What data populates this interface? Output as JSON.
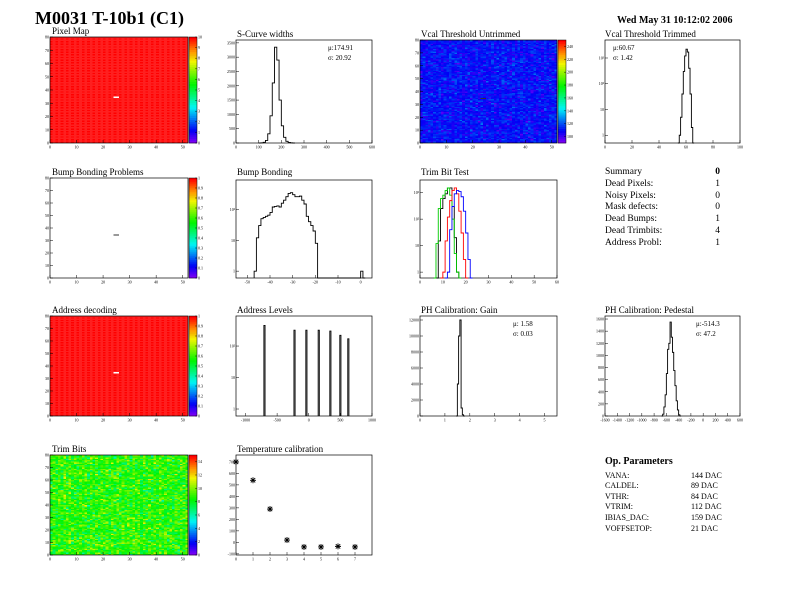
{
  "header": {
    "title": "M0031 T-10b1 (C1)",
    "date": "Wed May 31 10:12:02 2006"
  },
  "summary": {
    "label": "Summary",
    "value": "0",
    "rows": [
      {
        "label": "Dead Pixels:",
        "value": "1"
      },
      {
        "label": "Noisy Pixels:",
        "value": "0"
      },
      {
        "label": "Mask defects:",
        "value": "0"
      },
      {
        "label": "Dead Bumps:",
        "value": "1"
      },
      {
        "label": "Dead Trimbits:",
        "value": "4"
      },
      {
        "label": "Address Probl:",
        "value": "1"
      }
    ]
  },
  "op_parameters": {
    "title": "Op. Parameters",
    "rows": [
      {
        "label": "VANA:",
        "value": "144 DAC"
      },
      {
        "label": "CALDEL:",
        "value": "89 DAC"
      },
      {
        "label": "VTHR:",
        "value": "84 DAC"
      },
      {
        "label": "VTRIM:",
        "value": "112 DAC"
      },
      {
        "label": "IBIAS_DAC:",
        "value": "159 DAC"
      },
      {
        "label": "VOFFSETOP:",
        "value": "21 DAC"
      }
    ]
  },
  "chart_data": [
    {
      "id": "pixel_map",
      "type": "heatmap",
      "title": "Pixel Map",
      "xlim": [
        0,
        52
      ],
      "ylim": [
        0,
        80
      ],
      "xticks": [
        0,
        10,
        20,
        30,
        40,
        50
      ],
      "yticks": [
        0,
        10,
        20,
        30,
        40,
        50,
        60,
        70,
        80
      ],
      "zlim": [
        0,
        10
      ],
      "zticks": [
        0,
        1,
        2,
        3,
        4,
        5,
        6,
        7,
        8,
        9,
        10
      ],
      "fill_value": 10,
      "anomalies": [
        {
          "col": 24,
          "row": 34,
          "value": 0
        }
      ]
    },
    {
      "id": "s_curve",
      "type": "line",
      "title": "S-Curve widths",
      "xlim": [
        0,
        600
      ],
      "ylim": [
        0,
        3600
      ],
      "xticks": [
        0,
        100,
        200,
        300,
        400,
        500,
        600
      ],
      "yticks": [
        0,
        500,
        1000,
        1500,
        2000,
        2500,
        3000,
        3500
      ],
      "stats": {
        "mu": "μ:174.91",
        "sigma": "σ: 20.92"
      },
      "series": [
        {
          "bin_start": 100,
          "bin_width": 10,
          "counts": [
            0,
            5,
            25,
            90,
            320,
            950,
            2100,
            3350,
            2900,
            1500,
            600,
            200,
            60,
            20,
            5,
            0
          ]
        }
      ]
    },
    {
      "id": "vcal_untrimmed",
      "type": "heatmap",
      "title": "Vcal Threshold Untrimmed",
      "xlim": [
        0,
        52
      ],
      "ylim": [
        0,
        80
      ],
      "xticks": [
        0,
        10,
        20,
        30,
        40,
        50
      ],
      "yticks": [
        0,
        10,
        20,
        30,
        40,
        50,
        60,
        70,
        80
      ],
      "zlim": [
        90,
        250
      ],
      "zticks": [
        100,
        120,
        140,
        160,
        180,
        200,
        220,
        240
      ],
      "typical_value": 108,
      "spread": 9,
      "anomalies": [
        {
          "col": 23,
          "row": 34,
          "value": 245
        }
      ]
    },
    {
      "id": "vcal_trimmed",
      "type": "line",
      "title": "Vcal Threshold Trimmed",
      "xlim": [
        0,
        100
      ],
      "ylim": [
        0.5,
        5000
      ],
      "log_y": true,
      "xticks": [
        0,
        20,
        40,
        60,
        80,
        100
      ],
      "yticks": [
        1,
        10,
        100,
        1000
      ],
      "stats_left": true,
      "stats": {
        "mu": "μ:60.67",
        "sigma": "σ: 1.42"
      },
      "series": [
        {
          "bin_start": 54,
          "bin_width": 1,
          "counts": [
            0,
            1,
            5,
            40,
            300,
            1200,
            2200,
            1700,
            400,
            40,
            2,
            0
          ]
        }
      ]
    },
    {
      "id": "bump_problems",
      "type": "heatmap",
      "title": "Bump Bonding Problems",
      "xlim": [
        0,
        52
      ],
      "ylim": [
        0,
        80
      ],
      "xticks": [
        0,
        10,
        20,
        30,
        40,
        50
      ],
      "yticks": [
        0,
        10,
        20,
        30,
        40,
        50,
        60,
        70,
        80
      ],
      "zlim": [
        0,
        1
      ],
      "zticks": [
        0,
        0.1,
        0.2,
        0.3,
        0.4,
        0.5,
        0.6,
        0.7,
        0.8,
        0.9,
        1
      ],
      "fill_value": null,
      "anomalies": [
        {
          "col": 24,
          "row": 34,
          "value": 1
        }
      ]
    },
    {
      "id": "bump_bonding",
      "type": "line",
      "title": "Bump Bonding",
      "xlim": [
        -55,
        5
      ],
      "ylim": [
        0.6,
        900
      ],
      "log_y": true,
      "xticks": [
        -50,
        -40,
        -30,
        -20,
        -10,
        0
      ],
      "yticks": [
        1,
        10,
        100
      ],
      "series": [
        {
          "bin_start": -47,
          "bin_width": 1,
          "counts": [
            1,
            12,
            30,
            50,
            55,
            60,
            65,
            80,
            120,
            125,
            130,
            120,
            160,
            200,
            260,
            330,
            350,
            300,
            260,
            260,
            270,
            200,
            150,
            60,
            40,
            30,
            20,
            8,
            0,
            0,
            0,
            0,
            0,
            0,
            0,
            0,
            0,
            0,
            0,
            0,
            0,
            0,
            0,
            0,
            0,
            0,
            0,
            1,
            0
          ]
        }
      ]
    },
    {
      "id": "trim_bit_test",
      "type": "line",
      "title": "Trim Bit Test",
      "xlim": [
        0,
        60
      ],
      "ylim": [
        0.6,
        3000
      ],
      "log_y": true,
      "xticks": [
        0,
        10,
        20,
        30,
        40,
        50,
        60
      ],
      "yticks": [
        1,
        10,
        100,
        1000
      ],
      "series": [
        {
          "color": "#000000",
          "bin_start": 6,
          "bin_width": 1,
          "counts": [
            0,
            0,
            15,
            250,
            600,
            900,
            1500,
            1500,
            300,
            20,
            1,
            0
          ]
        },
        {
          "color": "#00cc00",
          "bin_start": 6,
          "bin_width": 1,
          "counts": [
            0,
            12,
            250,
            600,
            800,
            1200,
            1500,
            800,
            100,
            5,
            1,
            0
          ]
        },
        {
          "color": "#ff0000",
          "bin_start": 9,
          "bin_width": 1,
          "counts": [
            0,
            1,
            15,
            120,
            500,
            1200,
            1500,
            900,
            200,
            30,
            3,
            0
          ]
        },
        {
          "color": "#0000ff",
          "bin_start": 11,
          "bin_width": 1,
          "counts": [
            0,
            1,
            40,
            300,
            900,
            1200,
            1100,
            700,
            200,
            30,
            3,
            0
          ]
        }
      ]
    },
    {
      "id": "address_decoding",
      "type": "heatmap",
      "title": "Address decoding",
      "xlim": [
        0,
        52
      ],
      "ylim": [
        0,
        80
      ],
      "xticks": [
        0,
        10,
        20,
        30,
        40,
        50
      ],
      "yticks": [
        0,
        10,
        20,
        30,
        40,
        50,
        60,
        70,
        80
      ],
      "zlim": [
        0,
        1
      ],
      "zticks": [
        0,
        0.1,
        0.2,
        0.3,
        0.4,
        0.5,
        0.6,
        0.7,
        0.8,
        0.9,
        1
      ],
      "fill_value": 1,
      "anomalies": [
        {
          "col": 24,
          "row": 34,
          "value": 0
        }
      ]
    },
    {
      "id": "address_levels",
      "type": "line",
      "title": "Address Levels",
      "xlim": [
        -1150,
        1000
      ],
      "ylim": [
        0.6,
        900
      ],
      "log_y": true,
      "xticks": [
        -1000,
        -500,
        0,
        500,
        1000
      ],
      "yticks": [
        1,
        10,
        100
      ],
      "series": [
        {
          "peaks": [
            -700,
            -225,
            -37,
            158,
            342,
            500,
            626
          ],
          "heights": [
            450,
            320,
            320,
            320,
            300,
            220,
            170
          ],
          "width": 18
        }
      ]
    },
    {
      "id": "ph_gain",
      "type": "line",
      "title": "PH Calibration: Gain",
      "xlim": [
        0,
        5.5
      ],
      "ylim": [
        0,
        12500
      ],
      "xticks": [
        0,
        1,
        2,
        3,
        4,
        5
      ],
      "yticks": [
        0,
        2000,
        4000,
        6000,
        8000,
        10000,
        12000
      ],
      "stats": {
        "mu": "μ: 1.58",
        "sigma": "σ: 0.03"
      },
      "series": [
        {
          "bin_start": 1.45,
          "bin_width": 0.05,
          "counts": [
            0,
            4000,
            10000,
            12000,
            1000,
            150,
            0
          ]
        }
      ]
    },
    {
      "id": "ph_pedestal",
      "type": "line",
      "title": "PH Calibration: Pedestal",
      "xlim": [
        -1600,
        600
      ],
      "ylim": [
        0,
        1650
      ],
      "xticks": [
        -1600,
        -1400,
        -1200,
        -1000,
        -800,
        -600,
        -400,
        -200,
        0,
        200,
        400,
        600
      ],
      "yticks": [
        0,
        200,
        400,
        600,
        800,
        1000,
        1200,
        1400,
        1600
      ],
      "stats": {
        "mu": "μ:-514.3",
        "sigma": "σ: 47.2"
      },
      "series": [
        {
          "bin_start": -680,
          "bin_width": 20,
          "counts": [
            0,
            30,
            150,
            350,
            700,
            1100,
            1200,
            1550,
            1300,
            1050,
            750,
            500,
            250,
            100,
            20,
            0
          ]
        }
      ]
    },
    {
      "id": "trim_bits",
      "type": "heatmap",
      "title": "Trim Bits",
      "xlim": [
        0,
        52
      ],
      "ylim": [
        0,
        80
      ],
      "xticks": [
        0,
        10,
        20,
        30,
        40,
        50
      ],
      "yticks": [
        0,
        10,
        20,
        30,
        40,
        50,
        60,
        70,
        80
      ],
      "zlim": [
        0,
        15
      ],
      "zticks": [
        0,
        2,
        4,
        6,
        8,
        10,
        12,
        14
      ],
      "typical_value": 8.5,
      "spread": 1.8,
      "anomalies": []
    },
    {
      "id": "temperature",
      "type": "scatter",
      "title": "Temperature calibration",
      "xlim": [
        0,
        8
      ],
      "ylim": [
        -110,
        760
      ],
      "xticks": [
        0,
        1,
        2,
        3,
        4,
        5,
        6,
        7
      ],
      "yticks": [
        -100,
        0,
        100,
        200,
        300,
        400,
        500,
        600,
        700
      ],
      "points": {
        "x": [
          0,
          1,
          2,
          3,
          4,
          5,
          6,
          7
        ],
        "y": [
          700,
          540,
          290,
          20,
          -40,
          -40,
          -35,
          -40
        ]
      }
    }
  ]
}
